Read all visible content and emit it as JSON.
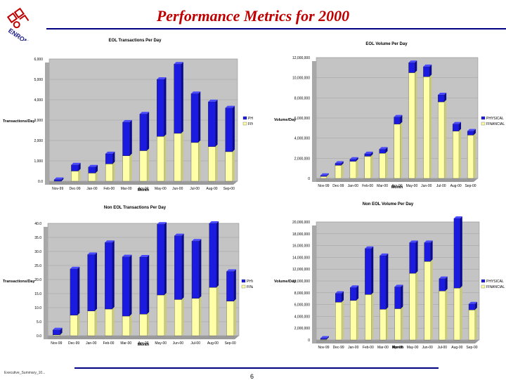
{
  "header": {
    "title": "Performance Metrics for 2000",
    "logo_text": "ENRON"
  },
  "footer": {
    "note": "Executive_Summary_10...",
    "page_number": "6"
  },
  "colors": {
    "physical": "#1a1ae0",
    "financial": "#ffffa8",
    "title": "#c00000",
    "rule": "#000080",
    "plot_bg": "#c4c4c4"
  },
  "chart_data": [
    {
      "type": "bar",
      "stacked": true,
      "title": "EOL Transactions Per Day",
      "xlabel": "Month",
      "ylabel": "Transactions/Day",
      "ylim": [
        0,
        6000
      ],
      "y_ticks": [
        "0.0",
        "1,000",
        "2,000",
        "3,000",
        "4,000",
        "5,000",
        "6,000"
      ],
      "categories": [
        "Nov-99",
        "Dec-99",
        "Jan-00",
        "Feb-00",
        "Mar-00",
        "Apr-00",
        "May-00",
        "Jun-00",
        "Jul-00",
        "Aug-00",
        "Sep-00"
      ],
      "series": [
        {
          "name": "FINANCIAL",
          "values": [
            0,
            500,
            400,
            850,
            1250,
            1500,
            2200,
            2350,
            1900,
            1700,
            1450
          ]
        },
        {
          "name": "PHYSICAL",
          "values": [
            80,
            300,
            300,
            500,
            1650,
            1800,
            2800,
            3400,
            2400,
            2200,
            2150
          ]
        }
      ],
      "legend_position": "right"
    },
    {
      "type": "bar",
      "stacked": true,
      "title": "EOL Volume Per Day",
      "xlabel": "Month",
      "ylabel": "Volume/Day",
      "ylim": [
        0,
        12000000
      ],
      "y_ticks": [
        "0",
        "2,000,000",
        "4,000,000",
        "6,000,000",
        "8,000,000",
        "10,000,000",
        "12,000,000"
      ],
      "categories": [
        "Nov-99",
        "Dec-99",
        "Jan-00",
        "Feb-00",
        "Mar-00",
        "Apr-00",
        "May-00",
        "Jun-00",
        "Jul-00",
        "Aug-00",
        "Sep-00"
      ],
      "series": [
        {
          "name": "FINANCIAL",
          "values": [
            200000,
            1300000,
            1700000,
            2200000,
            2500000,
            5400000,
            10500000,
            10100000,
            7600000,
            4700000,
            4300000
          ]
        },
        {
          "name": "PHYSICAL",
          "values": [
            100000,
            200000,
            200000,
            250000,
            400000,
            700000,
            1000000,
            1000000,
            700000,
            700000,
            400000
          ]
        }
      ],
      "legend_position": "right"
    },
    {
      "type": "bar",
      "stacked": true,
      "title": "Non EOL Transactions Per Day",
      "xlabel": "Month",
      "ylabel": "Transactions/Day",
      "ylim": [
        0,
        40
      ],
      "y_ticks": [
        "0.0",
        "5.0",
        "10.0",
        "15.0",
        "20.0",
        "25.0",
        "30.0",
        "35.0",
        "40.0"
      ],
      "categories": [
        "Nov-99",
        "Dec-99",
        "Jan-00",
        "Feb-00",
        "Mar-00",
        "Apr-00",
        "May-00",
        "Jun-00",
        "Jul-00",
        "Aug-00",
        "Sep-00"
      ],
      "series": [
        {
          "name": "FINANCIAL",
          "values": [
            0.3,
            7.3,
            8.8,
            9.5,
            7.0,
            7.7,
            14.5,
            12.9,
            13.3,
            17.2,
            12.3
          ]
        },
        {
          "name": "PHYSICAL",
          "values": [
            1.8,
            16.5,
            20.1,
            23.7,
            21.1,
            20.3,
            25.2,
            22.7,
            20.4,
            22.8,
            10.6
          ]
        }
      ],
      "legend_position": "right"
    },
    {
      "type": "bar",
      "stacked": true,
      "title": "Non EOL Volume Per Day",
      "xlabel": "Month",
      "ylabel": "Volume/Day",
      "ylim": [
        0,
        20000000
      ],
      "y_ticks": [
        "0",
        "2,000,000",
        "4,000,000",
        "6,000,000",
        "8,000,000",
        "10,000,000",
        "12,000,000",
        "14,000,000",
        "16,000,000",
        "18,000,000",
        "20,000,000"
      ],
      "categories": [
        "Nov-99",
        "Dec-99",
        "Jan-00",
        "Feb-00",
        "Mar-00",
        "Apr-00",
        "May-00",
        "Jun-00",
        "Jul-00",
        "Aug-00",
        "Sep-00"
      ],
      "series": [
        {
          "name": "FINANCIAL",
          "values": [
            100000,
            6400000,
            6700000,
            7700000,
            5200000,
            5300000,
            11300000,
            13300000,
            8300000,
            8800000,
            5100000
          ]
        },
        {
          "name": "PHYSICAL",
          "values": [
            200000,
            1500000,
            2200000,
            7800000,
            9100000,
            3700000,
            5200000,
            3200000,
            2100000,
            11800000,
            1000000
          ]
        }
      ],
      "legend_position": "right"
    }
  ]
}
